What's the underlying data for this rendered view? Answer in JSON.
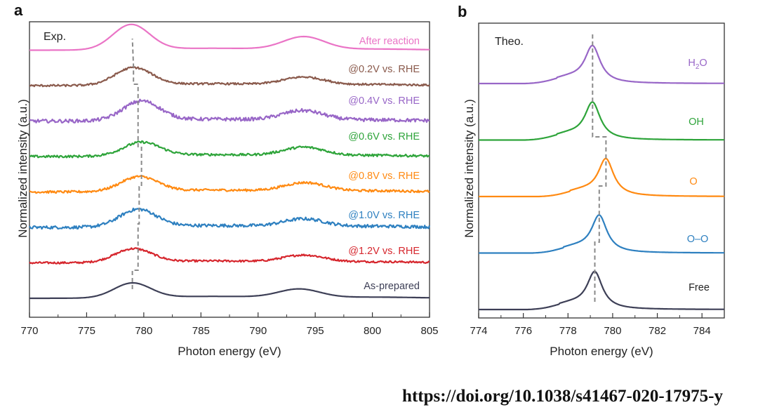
{
  "chart_data": [
    {
      "panel": "a",
      "type": "line",
      "panel_label": "Exp.",
      "xlabel": "Photon energy (eV)",
      "ylabel": "Normalized intensity (a.u.)",
      "xlim": [
        770,
        805
      ],
      "xticks": [
        770,
        775,
        780,
        785,
        790,
        795,
        800,
        805
      ],
      "series": [
        {
          "name": "As-prepared",
          "color": "#3d3f56",
          "offset": 0.0,
          "peak1_eV": 779.0,
          "peak1_h": 0.38,
          "peak2_eV": 793.6,
          "peak2_h": 0.22,
          "noise": 0.0
        },
        {
          "name": "@1.2V vs. RHE",
          "color": "#d6262d",
          "offset": 1.0,
          "peak1_eV": 779.1,
          "peak1_h": 0.35,
          "peak2_eV": 794.0,
          "peak2_h": 0.18,
          "noise": 0.05
        },
        {
          "name": "@1.0V vs. RHE",
          "color": "#2e80c0",
          "offset": 2.0,
          "peak1_eV": 779.5,
          "peak1_h": 0.45,
          "peak2_eV": 794.0,
          "peak2_h": 0.2,
          "noise": 0.08
        },
        {
          "name": "@0.8V vs. RHE",
          "color": "#ff8a12",
          "offset": 3.0,
          "peak1_eV": 779.6,
          "peak1_h": 0.38,
          "peak2_eV": 794.1,
          "peak2_h": 0.22,
          "noise": 0.06
        },
        {
          "name": "@0.6V vs. RHE",
          "color": "#2ea43a",
          "offset": 4.0,
          "peak1_eV": 779.8,
          "peak1_h": 0.35,
          "peak2_eV": 794.0,
          "peak2_h": 0.22,
          "noise": 0.06
        },
        {
          "name": "@0.4V vs. RHE",
          "color": "#9866c7",
          "offset": 5.0,
          "peak1_eV": 779.8,
          "peak1_h": 0.5,
          "peak2_eV": 793.9,
          "peak2_h": 0.25,
          "noise": 0.09
        },
        {
          "name": "@0.2V vs. RHE",
          "color": "#8a5a4c",
          "offset": 6.0,
          "peak1_eV": 779.1,
          "peak1_h": 0.45,
          "peak2_eV": 794.0,
          "peak2_h": 0.2,
          "noise": 0.05
        },
        {
          "name": "After reaction",
          "color": "#ea74c6",
          "offset": 7.0,
          "peak1_eV": 778.9,
          "peak1_h": 0.65,
          "peak2_eV": 794.0,
          "peak2_h": 0.33,
          "noise": 0.0
        }
      ],
      "dashed_guide_eV": [
        779.0,
        779.0,
        779.5,
        779.5,
        779.6,
        779.6,
        779.8,
        779.8,
        779.5,
        779.5,
        779.1,
        779.1,
        779.0
      ]
    },
    {
      "panel": "b",
      "type": "line",
      "panel_label": "Theo.",
      "xlabel": "Photon energy (eV)",
      "ylabel": "Normalized intensity (a.u.)",
      "xlim": [
        774,
        785
      ],
      "xticks": [
        774,
        776,
        778,
        780,
        782,
        784
      ],
      "series": [
        {
          "name": "Free",
          "color": "#3d3f56",
          "offset": 0.0,
          "peak_eV": 779.2
        },
        {
          "name": "O–O",
          "color": "#2e80c0",
          "offset": 1.0,
          "peak_eV": 779.4
        },
        {
          "name": "O",
          "color": "#ff8a12",
          "offset": 2.0,
          "peak_eV": 779.7
        },
        {
          "name": "OH",
          "color": "#2ea43a",
          "offset": 3.0,
          "peak_eV": 779.1
        },
        {
          "name": "H2O",
          "color": "#9866c7",
          "offset": 4.0,
          "peak_eV": 779.1,
          "label_main": "H",
          "label_sub": "2",
          "label_tail": "O"
        }
      ]
    }
  ],
  "panels": {
    "a_letter": "a",
    "b_letter": "b"
  },
  "doi": "https://doi.org/10.1038/s41467-020-17975-y"
}
